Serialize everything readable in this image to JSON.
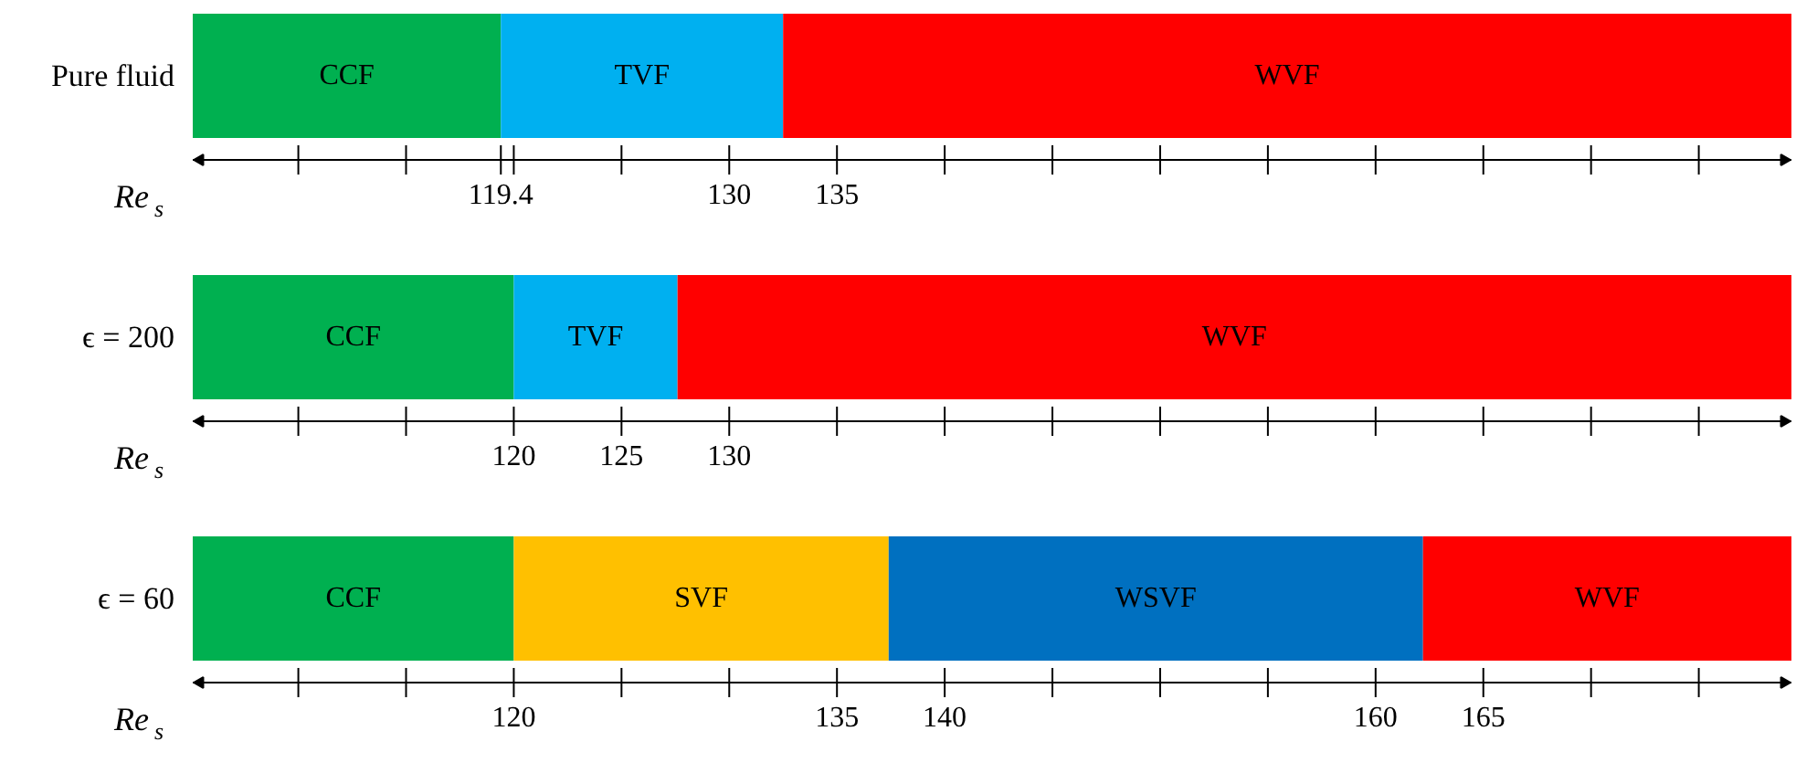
{
  "chart_data": [
    {
      "type": "bar",
      "orientation": "horizontal",
      "categories": [
        "Pure fluid"
      ],
      "xlabel": "Re$_{s}$",
      "xlim": [
        105.1,
        179.3
      ],
      "xticks": [
        {
          "value": 110,
          "label": null
        },
        {
          "value": 115,
          "label": null
        },
        119.4,
        {
          "value": 120,
          "label": null
        },
        {
          "value": 125,
          "label": null
        },
        130,
        135,
        {
          "value": 140,
          "label": null
        },
        {
          "value": 145,
          "label": null
        },
        {
          "value": 150,
          "label": null
        },
        {
          "value": 155,
          "label": null
        },
        {
          "value": 160,
          "label": null
        },
        {
          "value": 165,
          "label": null
        },
        {
          "value": 170,
          "label": null
        },
        {
          "value": 175,
          "label": null
        }
      ],
      "series": [
        {
          "name": "CCF",
          "color": "#00b050",
          "values": [
            14.3
          ],
          "base": [
            105.1
          ]
        },
        {
          "name": "TVF",
          "color": "#00b0f0",
          "values": [
            13.1
          ],
          "base": [
            119.4
          ]
        },
        {
          "name": "WVF",
          "color": "#ff0000",
          "values": [
            46.8
          ],
          "base": [
            132.5
          ]
        }
      ]
    },
    {
      "type": "bar",
      "orientation": "horizontal",
      "categories": [
        "ϵ = 200"
      ],
      "xlabel": "Re$_{s}$",
      "xlim": [
        105.1,
        179.3
      ],
      "xticks": [
        {
          "value": 110,
          "label": null
        },
        {
          "value": 115,
          "label": null
        },
        120,
        125,
        130,
        {
          "value": 135,
          "label": null
        },
        {
          "value": 140,
          "label": null
        },
        {
          "value": 145,
          "label": null
        },
        {
          "value": 150,
          "label": null
        },
        {
          "value": 155,
          "label": null
        },
        {
          "value": 160,
          "label": null
        },
        {
          "value": 165,
          "label": null
        },
        {
          "value": 170,
          "label": null
        },
        {
          "value": 175,
          "label": null
        }
      ],
      "series": [
        {
          "name": "CCF",
          "color": "#00b050",
          "values": [
            14.9
          ],
          "base": [
            105.1
          ]
        },
        {
          "name": "TVF",
          "color": "#00b0f0",
          "values": [
            7.6
          ],
          "base": [
            120
          ]
        },
        {
          "name": "WVF",
          "color": "#ff0000",
          "values": [
            51.7
          ],
          "base": [
            127.6
          ]
        }
      ]
    },
    {
      "type": "bar",
      "orientation": "horizontal",
      "categories": [
        "ϵ = 60"
      ],
      "xlabel": "Re$_{s}$",
      "xlim": [
        105.1,
        179.3
      ],
      "xticks": [
        {
          "value": 110,
          "label": null
        },
        {
          "value": 115,
          "label": null
        },
        120,
        {
          "value": 125,
          "label": null
        },
        {
          "value": 130,
          "label": null
        },
        135,
        140,
        {
          "value": 145,
          "label": null
        },
        {
          "value": 150,
          "label": null
        },
        {
          "value": 155,
          "label": null
        },
        160,
        165,
        {
          "value": 170,
          "label": null
        },
        {
          "value": 175,
          "label": null
        }
      ],
      "series": [
        {
          "name": "CCF",
          "color": "#00b050",
          "values": [
            14.9
          ],
          "base": [
            105.1
          ]
        },
        {
          "name": "SVF",
          "color": "#ffc000",
          "values": [
            17.4
          ],
          "base": [
            120
          ]
        },
        {
          "name": "WSVF",
          "color": "#0070c0",
          "values": [
            24.8
          ],
          "base": [
            137.4
          ]
        },
        {
          "name": "WVF",
          "color": "#ff0000",
          "values": [
            17.1
          ],
          "base": [
            162.2
          ]
        }
      ]
    }
  ]
}
